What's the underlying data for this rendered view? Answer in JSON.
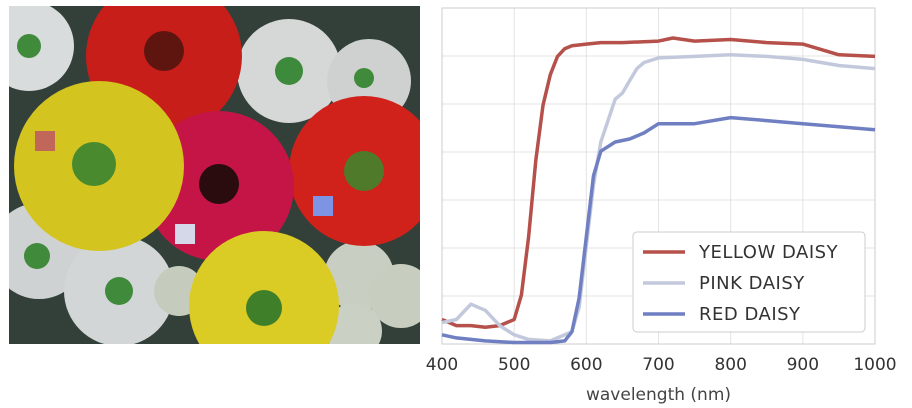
{
  "photo": {
    "description_icon": "flower-photo",
    "markers": [
      {
        "name": "yellow-daisy-sample-marker",
        "color": "#c0675a"
      },
      {
        "name": "pink-daisy-sample-marker",
        "color": "#d4d8e8"
      },
      {
        "name": "red-daisy-sample-marker",
        "color": "#7d93e3"
      }
    ]
  },
  "chart_data": {
    "type": "line",
    "xlabel": "wavelength (nm)",
    "ylabel": "",
    "title": "",
    "xlim": [
      400,
      1000
    ],
    "ylim": [
      0,
      1
    ],
    "xticks": [
      400,
      500,
      600,
      700,
      800,
      900,
      1000
    ],
    "grid": true,
    "legend_position": "bottom-right",
    "series": [
      {
        "name": "YELLOW DAISY",
        "color": "#b5514a",
        "x": [
          400,
          420,
          440,
          460,
          480,
          500,
          510,
          520,
          530,
          540,
          550,
          560,
          570,
          580,
          600,
          620,
          650,
          700,
          720,
          750,
          800,
          850,
          900,
          950,
          1000
        ],
        "y": [
          0.08,
          0.06,
          0.06,
          0.055,
          0.06,
          0.08,
          0.16,
          0.35,
          0.6,
          0.78,
          0.88,
          0.94,
          0.965,
          0.975,
          0.98,
          0.985,
          0.985,
          0.99,
          1.0,
          0.99,
          0.995,
          0.985,
          0.98,
          0.945,
          0.94
        ]
      },
      {
        "name": "PINK DAISY",
        "color": "#c3c9dc",
        "x": [
          400,
          420,
          440,
          460,
          480,
          500,
          520,
          550,
          580,
          590,
          600,
          610,
          620,
          640,
          650,
          660,
          670,
          680,
          700,
          750,
          800,
          850,
          900,
          950,
          1000
        ],
        "y": [
          0.07,
          0.08,
          0.13,
          0.11,
          0.06,
          0.03,
          0.015,
          0.01,
          0.04,
          0.12,
          0.32,
          0.52,
          0.66,
          0.8,
          0.82,
          0.86,
          0.9,
          0.92,
          0.935,
          0.94,
          0.945,
          0.94,
          0.93,
          0.91,
          0.9
        ]
      },
      {
        "name": "RED DAISY",
        "color": "#6f7fc2",
        "x": [
          400,
          420,
          440,
          460,
          500,
          550,
          570,
          580,
          590,
          600,
          610,
          620,
          640,
          660,
          680,
          700,
          750,
          800,
          850,
          900,
          950,
          1000
        ],
        "y": [
          0.03,
          0.02,
          0.015,
          0.01,
          0.005,
          0.005,
          0.01,
          0.04,
          0.15,
          0.35,
          0.55,
          0.63,
          0.66,
          0.67,
          0.69,
          0.72,
          0.72,
          0.74,
          0.73,
          0.72,
          0.71,
          0.7
        ]
      }
    ]
  }
}
